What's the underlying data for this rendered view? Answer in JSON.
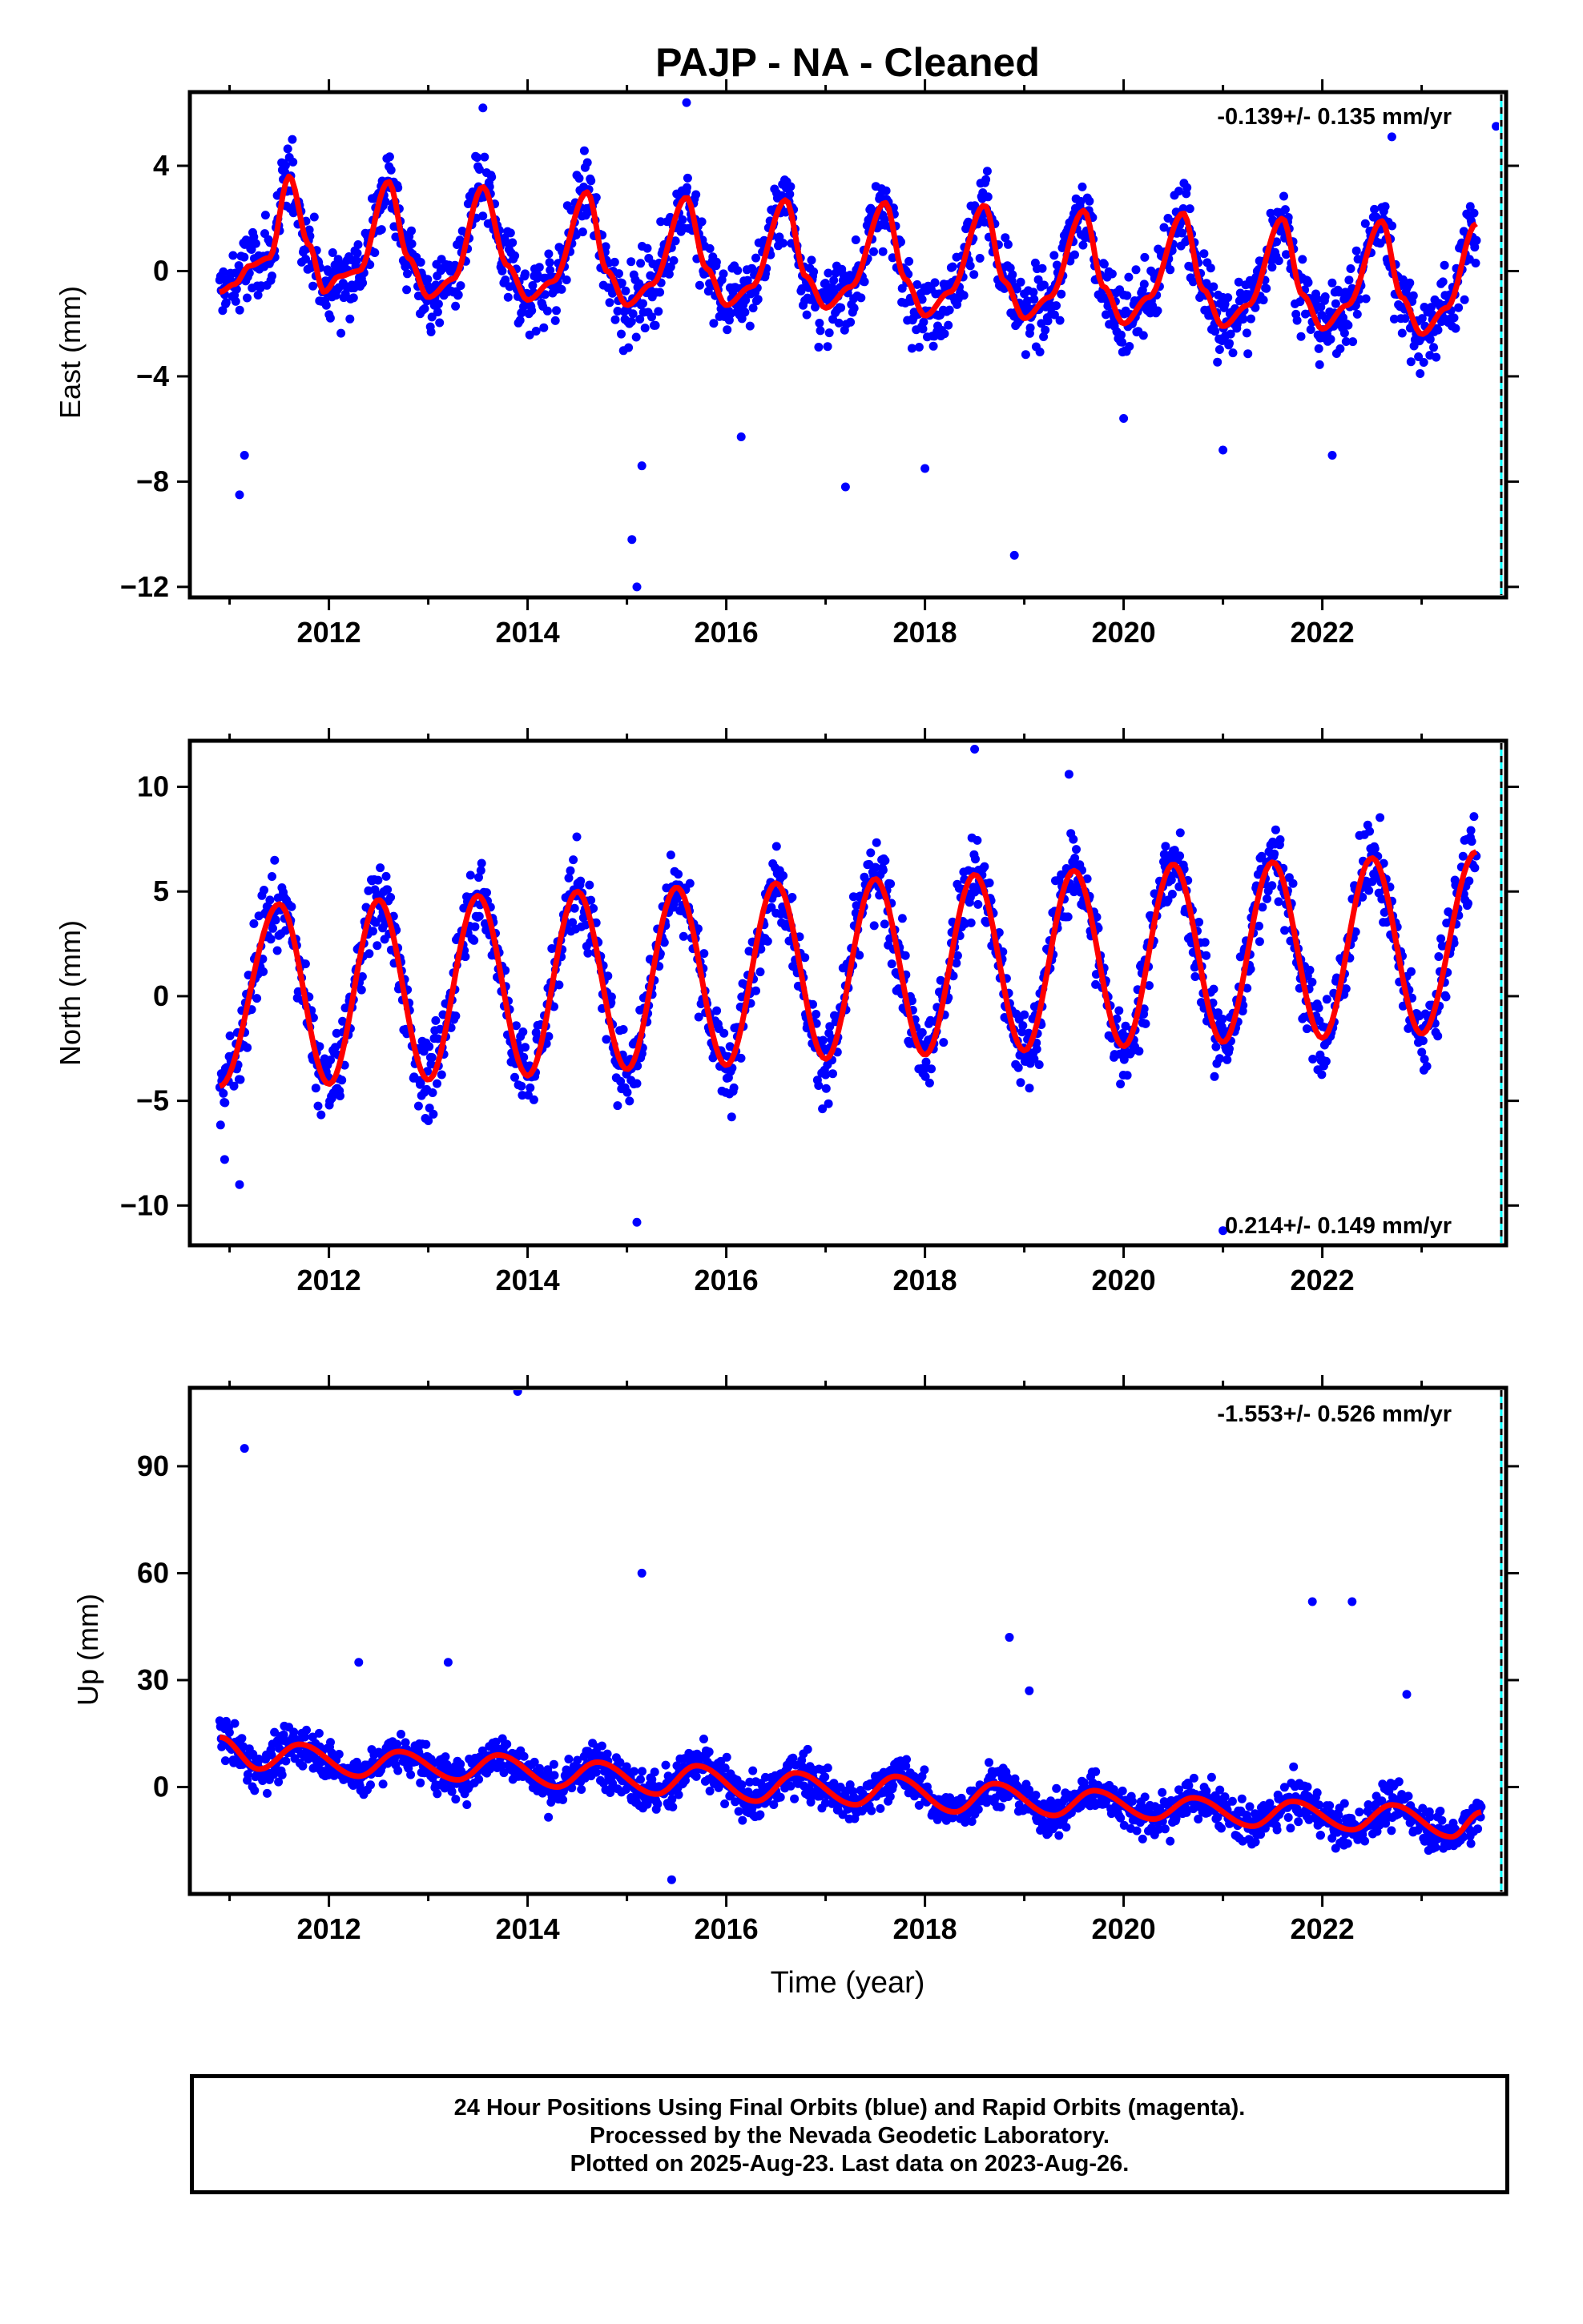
{
  "title": "PAJP  - NA - Cleaned",
  "xlabel": "Time (year)",
  "footer": {
    "line1": "24 Hour Positions Using Final Orbits (blue) and Rapid Orbits (magenta).",
    "line2": "Processed by the Nevada Geodetic Laboratory.",
    "line3": "Plotted on 2025-Aug-23. Last data on 2023-Aug-26."
  },
  "colors": {
    "final_orbits": "#0000ff",
    "model_fit": "#ff0000",
    "end_marker": "#00ffff"
  },
  "chart_data": [
    {
      "type": "scatter",
      "panel": "east",
      "ylabel": "East (mm)",
      "rate": "-0.139+/- 0.135 mm/yr",
      "xlim": [
        2010.6,
        2023.85
      ],
      "ylim": [
        -12.4,
        6.8
      ],
      "xticks": [
        2012,
        2014,
        2016,
        2018,
        2020,
        2022
      ],
      "yticks": [
        4,
        0,
        -4,
        -8,
        -12
      ],
      "ytick_labels": [
        "4",
        "0",
        "−4",
        "−8",
        "−12"
      ],
      "grid": false,
      "series": [
        {
          "role": "daily positions",
          "x": [
            2010.9,
            2011.05,
            2011.2,
            2011.4,
            2011.6,
            2011.8,
            2011.95,
            2012.1,
            2012.3,
            2012.6,
            2012.8,
            2013.0,
            2013.25,
            2013.55,
            2013.8,
            2014.0,
            2014.25,
            2014.6,
            2014.8,
            2015.0,
            2015.25,
            2015.6,
            2015.8,
            2016.0,
            2016.25,
            2016.6,
            2016.8,
            2017.0,
            2017.25,
            2017.6,
            2017.8,
            2018.0,
            2018.25,
            2018.6,
            2018.8,
            2019.0,
            2019.25,
            2019.6,
            2019.8,
            2020.0,
            2020.25,
            2020.6,
            2020.8,
            2021.0,
            2021.25,
            2021.6,
            2021.8,
            2022.0,
            2022.25,
            2022.6,
            2022.8,
            2023.0,
            2023.25,
            2023.55
          ],
          "y": [
            -0.8,
            -0.5,
            0.2,
            0.5,
            3.6,
            1.0,
            -0.8,
            -0.2,
            0.0,
            3.4,
            0.5,
            -1.0,
            -0.3,
            3.2,
            0.2,
            -1.1,
            -0.4,
            3.0,
            0.0,
            -1.3,
            -0.5,
            2.8,
            0.1,
            -1.3,
            -0.6,
            2.7,
            -0.2,
            -1.4,
            -0.6,
            2.6,
            -0.3,
            -1.7,
            -0.8,
            2.5,
            -0.4,
            -1.8,
            -1.0,
            2.3,
            -0.6,
            -2.0,
            -1.0,
            2.2,
            -0.7,
            -2.1,
            -1.3,
            2.0,
            -0.9,
            -2.2,
            -1.3,
            1.9,
            -1.0,
            -2.4,
            -1.4,
            1.8
          ]
        },
        {
          "role": "outliers",
          "x": [
            2011.1,
            2011.15,
            2015.05,
            2015.1,
            2015.15,
            2016.15,
            2017.2,
            2018.0,
            2018.9,
            2020.0,
            2021.0,
            2022.1,
            2013.55,
            2015.6,
            2022.7,
            2023.75
          ],
          "y": [
            -8.5,
            -7.0,
            -10.2,
            -12.0,
            -7.4,
            -6.3,
            -8.2,
            -7.5,
            -10.8,
            -5.6,
            -6.8,
            -7.0,
            6.2,
            6.4,
            5.1,
            5.5
          ]
        }
      ]
    },
    {
      "type": "scatter",
      "panel": "north",
      "ylabel": "North (mm)",
      "rate": "0.214+/- 0.149 mm/yr",
      "xlim": [
        2010.6,
        2023.85
      ],
      "ylim": [
        -11.9,
        12.2
      ],
      "xticks": [
        2012,
        2014,
        2016,
        2018,
        2020,
        2022
      ],
      "yticks": [
        10,
        5,
        0,
        -5,
        -10
      ],
      "ytick_labels": [
        "10",
        "5",
        "0",
        "−5",
        "−10"
      ],
      "grid": false,
      "series": [
        {
          "role": "daily positions",
          "x": [
            2010.9,
            2011.5,
            2012.0,
            2012.5,
            2013.0,
            2013.5,
            2014.0,
            2014.5,
            2015.0,
            2015.5,
            2016.0,
            2016.5,
            2017.0,
            2017.5,
            2018.0,
            2018.5,
            2019.0,
            2019.5,
            2020.0,
            2020.5,
            2021.0,
            2021.5,
            2022.0,
            2022.5,
            2023.0,
            2023.55
          ],
          "y": [
            -4.3,
            4.4,
            -4.2,
            4.6,
            -4.0,
            4.8,
            -3.8,
            5.0,
            -3.5,
            5.2,
            -3.3,
            5.4,
            -3.0,
            5.6,
            -2.8,
            5.8,
            -2.6,
            6.0,
            -2.4,
            6.3,
            -2.2,
            6.4,
            -2.0,
            6.6,
            -1.8,
            6.9
          ]
        },
        {
          "role": "outliers",
          "x": [
            2011.1,
            2015.1,
            2018.5,
            2019.45,
            2021.0,
            2010.95
          ],
          "y": [
            -9.0,
            -10.8,
            11.8,
            10.6,
            -11.2,
            -7.8
          ]
        }
      ]
    },
    {
      "type": "scatter",
      "panel": "up",
      "ylabel": "Up (mm)",
      "rate": "-1.553+/- 0.526 mm/yr",
      "xlim": [
        2010.6,
        2023.85
      ],
      "ylim": [
        -30,
        112
      ],
      "xticks": [
        2012,
        2014,
        2016,
        2018,
        2020,
        2022
      ],
      "yticks": [
        90,
        60,
        30,
        0
      ],
      "ytick_labels": [
        "90",
        "60",
        "30",
        "0"
      ],
      "grid": false,
      "series": [
        {
          "role": "daily positions",
          "x": [
            2010.9,
            2011.3,
            2011.7,
            2012.3,
            2012.7,
            2013.3,
            2013.7,
            2014.3,
            2014.7,
            2015.3,
            2015.7,
            2016.3,
            2016.7,
            2017.3,
            2017.7,
            2018.3,
            2018.7,
            2019.3,
            2019.7,
            2020.3,
            2020.7,
            2021.3,
            2021.7,
            2022.3,
            2022.7,
            2023.3,
            2023.6
          ],
          "y": [
            14,
            5,
            12,
            3,
            10,
            2,
            9,
            0,
            7,
            -2,
            6,
            -4,
            4,
            -5,
            3,
            -7,
            1,
            -8,
            -1,
            -9,
            -3,
            -11,
            -4,
            -12,
            -5,
            -14,
            -7
          ]
        },
        {
          "role": "outliers",
          "x": [
            2011.15,
            2013.9,
            2015.15,
            2012.3,
            2013.2,
            2018.85,
            2019.05,
            2021.9,
            2022.3,
            2022.85,
            2015.45
          ],
          "y": [
            95,
            111,
            60,
            35,
            35,
            42,
            27,
            52,
            52,
            26,
            -26
          ]
        }
      ]
    }
  ]
}
